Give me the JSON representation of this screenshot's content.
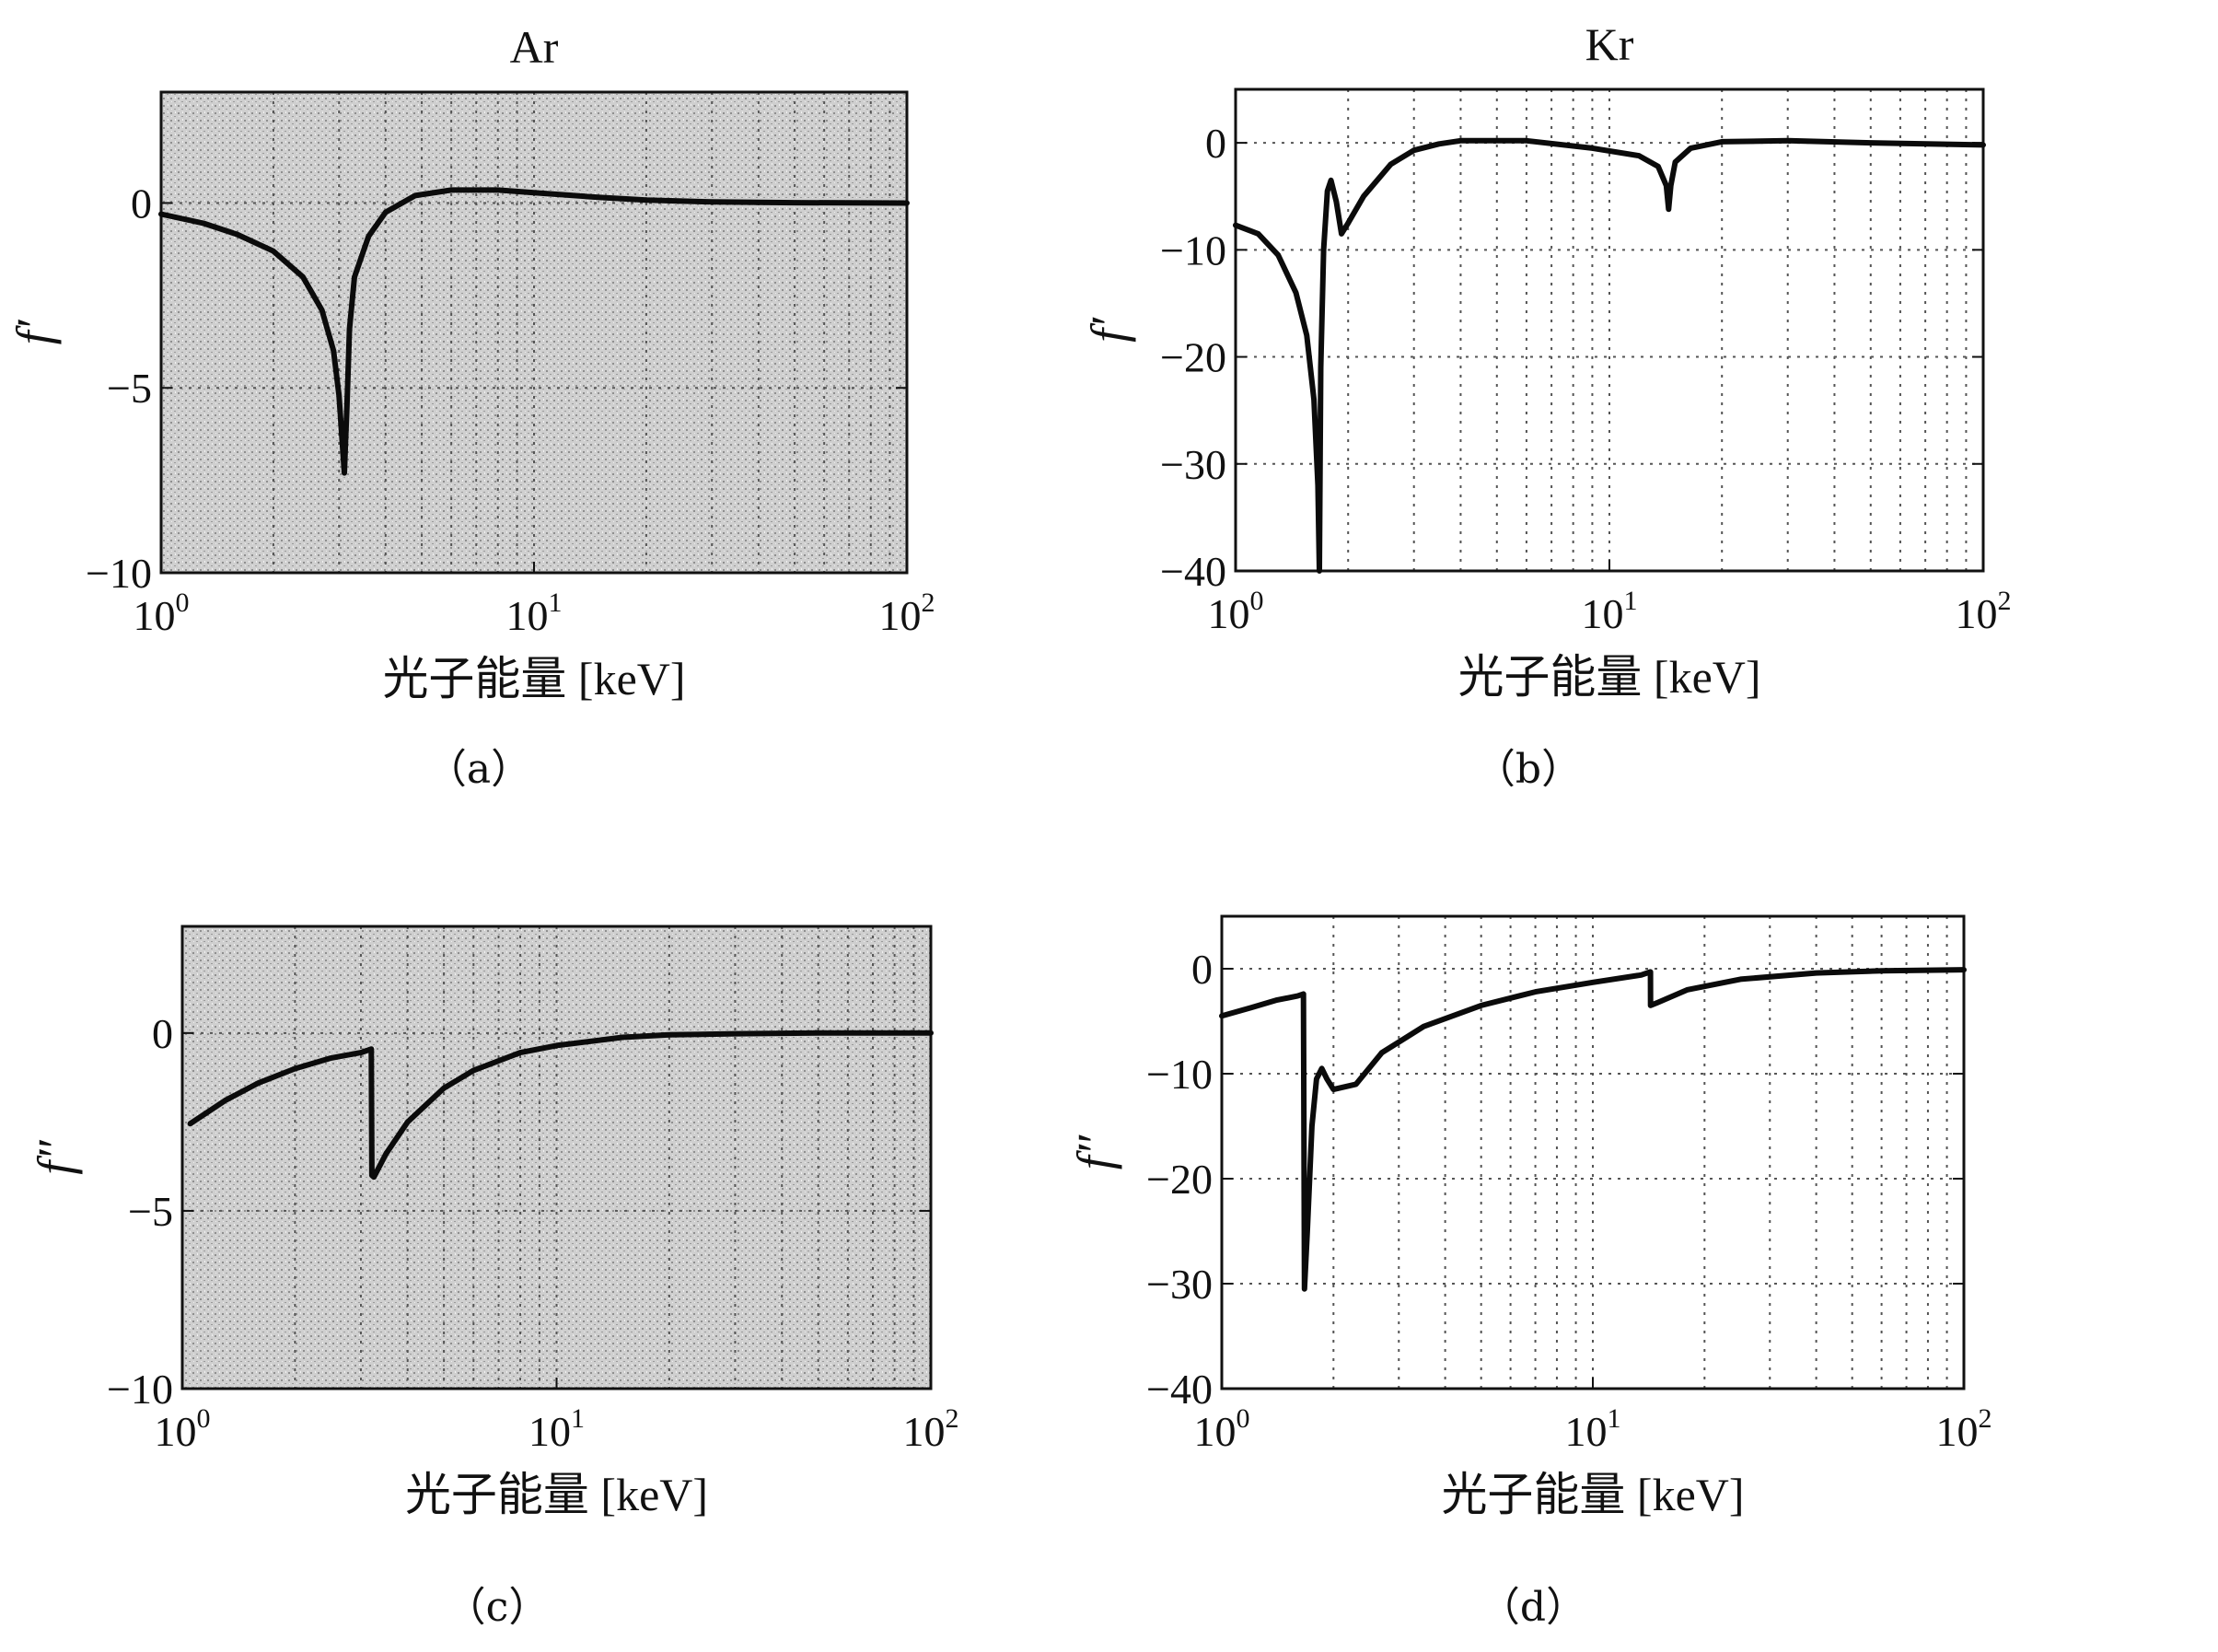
{
  "colors": {
    "curve": "#0b0b0b",
    "shaded_bg": "#c7c7c7",
    "plain_bg": "#ffffff"
  },
  "chart_data": [
    {
      "id": "a",
      "type": "line",
      "title": "Ar",
      "xlabel": "光子能量 [keV]",
      "ylabel": "f′",
      "caption": "（a）",
      "xscale": "log",
      "xlim": [
        1,
        100
      ],
      "ylim": [
        -10,
        3
      ],
      "xticks": [
        {
          "base": "10",
          "exp": "0",
          "value": 1
        },
        {
          "base": "10",
          "exp": "1",
          "value": 10
        },
        {
          "base": "10",
          "exp": "2",
          "value": 100
        }
      ],
      "yticks": [
        {
          "label": "0",
          "value": 0
        },
        {
          "label": "−5",
          "value": -5
        },
        {
          "label": "−10",
          "value": -10
        }
      ],
      "grid": true,
      "background": "shaded",
      "series": [
        {
          "x": [
            1.0,
            1.3,
            1.6,
            2.0,
            2.4,
            2.7,
            2.9,
            3.0,
            3.1,
            3.15,
            3.2,
            3.3,
            3.6,
            4.0,
            4.8,
            6.0,
            8.0,
            10.0,
            15.0,
            20.0,
            30.0,
            50.0,
            100.0
          ],
          "y": [
            -0.3,
            -0.55,
            -0.85,
            -1.3,
            -2.0,
            -2.9,
            -4.0,
            -5.2,
            -7.3,
            -5.5,
            -3.4,
            -2.0,
            -0.9,
            -0.25,
            0.2,
            0.35,
            0.35,
            0.28,
            0.15,
            0.08,
            0.03,
            0.01,
            0.0
          ]
        }
      ]
    },
    {
      "id": "b",
      "type": "line",
      "title": "Kr",
      "xlabel": "光子能量 [keV]",
      "ylabel": "f′",
      "caption": "（b）",
      "xscale": "log",
      "xlim": [
        1,
        100
      ],
      "ylim": [
        -40,
        5
      ],
      "xticks": [
        {
          "base": "10",
          "exp": "0",
          "value": 1
        },
        {
          "base": "10",
          "exp": "1",
          "value": 10
        },
        {
          "base": "10",
          "exp": "2",
          "value": 100
        }
      ],
      "yticks": [
        {
          "label": "0",
          "value": 0
        },
        {
          "label": "−10",
          "value": -10
        },
        {
          "label": "−20",
          "value": -20
        },
        {
          "label": "−30",
          "value": -30
        },
        {
          "label": "−40",
          "value": -40
        }
      ],
      "grid": true,
      "background": "plain",
      "series": [
        {
          "x": [
            1.0,
            1.15,
            1.3,
            1.45,
            1.55,
            1.62,
            1.66,
            1.675,
            1.69,
            1.72,
            1.76,
            1.8,
            1.86,
            1.92,
            2.0,
            2.2,
            2.6,
            3.0,
            3.5,
            4.0,
            6.0,
            9.0,
            12.0,
            13.5,
            14.2,
            14.4,
            14.6,
            15.0,
            16.5,
            20.0,
            30.0,
            50.0,
            100.0
          ],
          "y": [
            -7.7,
            -8.5,
            -10.5,
            -14.0,
            -18.0,
            -24.0,
            -32.0,
            -40.0,
            -21.0,
            -10.0,
            -4.5,
            -3.5,
            -5.5,
            -8.5,
            -7.5,
            -5.0,
            -2.0,
            -0.7,
            -0.1,
            0.2,
            0.2,
            -0.5,
            -1.2,
            -2.2,
            -4.0,
            -6.2,
            -4.0,
            -1.8,
            -0.5,
            0.1,
            0.2,
            0.0,
            -0.2
          ]
        }
      ]
    },
    {
      "id": "c",
      "type": "line",
      "title": "",
      "xlabel": "光子能量 [keV]",
      "ylabel": "f″",
      "caption": "（c）",
      "xscale": "log",
      "xlim": [
        1,
        100
      ],
      "ylim": [
        -10,
        3
      ],
      "xticks": [
        {
          "base": "10",
          "exp": "0",
          "value": 1
        },
        {
          "base": "10",
          "exp": "1",
          "value": 10
        },
        {
          "base": "10",
          "exp": "2",
          "value": 100
        }
      ],
      "yticks": [
        {
          "label": "0",
          "value": 0
        },
        {
          "label": "−5",
          "value": -5
        },
        {
          "label": "−10",
          "value": -10
        }
      ],
      "grid": true,
      "background": "shaded",
      "series": [
        {
          "x": [
            1.05,
            1.3,
            1.6,
            2.0,
            2.5,
            3.0,
            3.2,
            3.21,
            3.25,
            3.5,
            4.0,
            5.0,
            6.0,
            8.0,
            10.0,
            15.0,
            20.0,
            30.0,
            50.0,
            100.0
          ],
          "y": [
            -2.55,
            -1.9,
            -1.4,
            -1.0,
            -0.7,
            -0.55,
            -0.45,
            -4.0,
            -4.05,
            -3.4,
            -2.5,
            -1.55,
            -1.05,
            -0.55,
            -0.35,
            -0.12,
            -0.05,
            -0.02,
            0.0,
            0.0
          ]
        }
      ]
    },
    {
      "id": "d",
      "type": "line",
      "title": "",
      "xlabel": "光子能量 [keV]",
      "ylabel": "f″",
      "caption": "（d）",
      "xscale": "log",
      "xlim": [
        1,
        100
      ],
      "ylim": [
        -40,
        5
      ],
      "xticks": [
        {
          "base": "10",
          "exp": "0",
          "value": 1
        },
        {
          "base": "10",
          "exp": "1",
          "value": 10
        },
        {
          "base": "10",
          "exp": "2",
          "value": 100
        }
      ],
      "yticks": [
        {
          "label": "0",
          "value": 0
        },
        {
          "label": "−10",
          "value": -10
        },
        {
          "label": "−20",
          "value": -20
        },
        {
          "label": "−30",
          "value": -30
        },
        {
          "label": "−40",
          "value": -40
        }
      ],
      "grid": true,
      "background": "plain",
      "series": [
        {
          "x": [
            1.0,
            1.2,
            1.4,
            1.6,
            1.66,
            1.67,
            1.7,
            1.75,
            1.8,
            1.86,
            1.92,
            2.0,
            2.3,
            2.7,
            3.5,
            5.0,
            7.0,
            10.0,
            13.5,
            14.3,
            14.31,
            15.0,
            18.0,
            25.0,
            40.0,
            60.0,
            100.0
          ],
          "y": [
            -4.5,
            -3.7,
            -3.0,
            -2.6,
            -2.4,
            -30.5,
            -25.0,
            -15.0,
            -10.5,
            -9.5,
            -10.5,
            -11.5,
            -11.0,
            -8.0,
            -5.5,
            -3.5,
            -2.2,
            -1.3,
            -0.6,
            -0.3,
            -3.5,
            -3.2,
            -2.0,
            -1.0,
            -0.4,
            -0.2,
            -0.1
          ]
        }
      ]
    }
  ]
}
